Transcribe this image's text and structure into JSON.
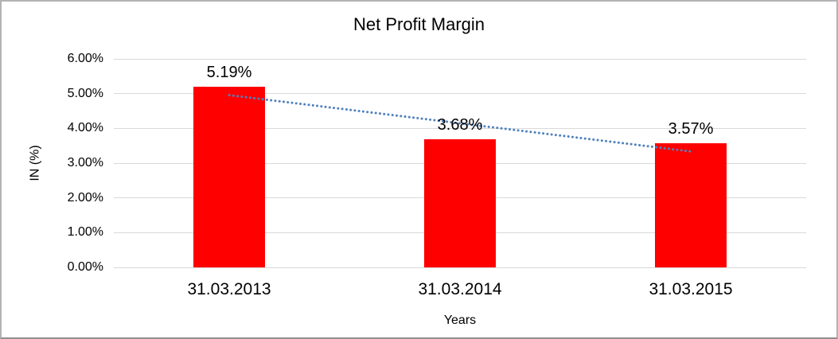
{
  "window": {
    "background": "#ffffff",
    "border_color": "#b3b3b3"
  },
  "chart_data": {
    "type": "bar",
    "title": "Net Profit Margin",
    "categories": [
      "31.03.2013",
      "31.03.2014",
      "31.03.2015"
    ],
    "values": [
      5.19,
      3.68,
      3.57
    ],
    "data_labels": [
      "5.19%",
      "3.68%",
      "3.57%"
    ],
    "xlabel": "Years",
    "ylabel": "IN (%)",
    "ylim": [
      0,
      6
    ],
    "ytick_step": 1,
    "ytick_labels": [
      "0.00%",
      "1.00%",
      "2.00%",
      "3.00%",
      "4.00%",
      "5.00%",
      "6.00%"
    ],
    "grid": true,
    "legend": "none",
    "bar_color": "#ff0000",
    "gridline_color": "#d9d9d9",
    "trendline": {
      "type": "linear",
      "style": "dotted",
      "color": "#4f81bd"
    }
  }
}
